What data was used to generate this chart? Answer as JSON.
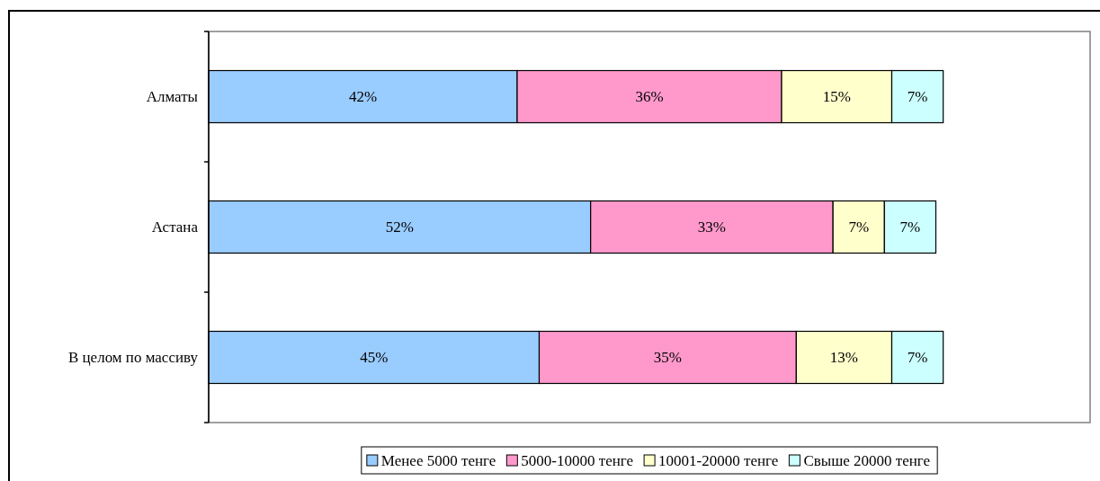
{
  "chart_data": {
    "type": "bar",
    "orientation": "horizontal",
    "stacked": true,
    "categories": [
      "Алматы",
      "Астана",
      "В целом по массиву"
    ],
    "xlim": [
      0,
      120
    ],
    "legend": "bottom",
    "tick_labels": "y",
    "series": [
      {
        "name": "Менее 5000 тенге",
        "color": "#99ccff",
        "values": [
          42,
          52,
          45
        ],
        "value_labels": [
          "42%",
          "52%",
          "45%"
        ]
      },
      {
        "name": "5000-10000 тенге",
        "color": "#ff99cc",
        "values": [
          36,
          33,
          35
        ],
        "value_labels": [
          "36%",
          "33%",
          "35%"
        ]
      },
      {
        "name": "10001-20000 тенге",
        "color": "#ffffcc",
        "values": [
          15,
          7,
          13
        ],
        "value_labels": [
          "15%",
          "7%",
          "13%"
        ]
      },
      {
        "name": "Свыше 20000 тенге",
        "color": "#ccffff",
        "values": [
          7,
          7,
          7
        ],
        "value_labels": [
          "7%",
          "7%",
          "7%"
        ]
      }
    ]
  }
}
